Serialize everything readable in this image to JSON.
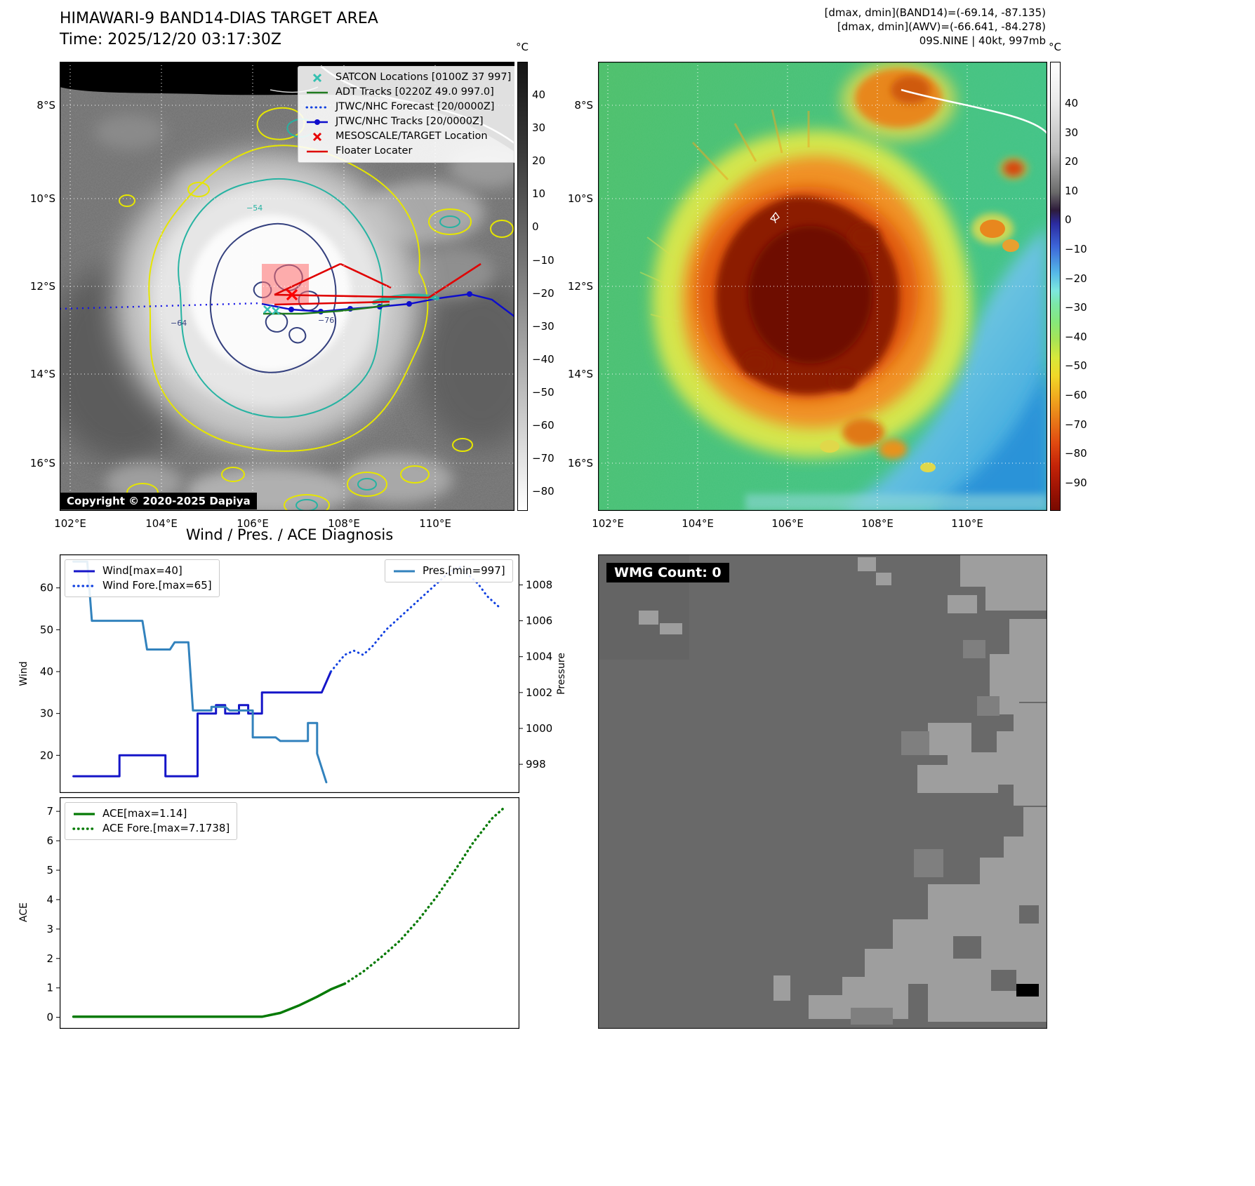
{
  "band14": {
    "title": "HIMAWARI-9 BAND14-DIAS TARGET AREA",
    "subtitle": "Time: 2025/12/20 03:17:30Z",
    "copyright": "Copyright © 2020-2025 Dapiya",
    "legend": [
      {
        "label": "SATCON Locations [0100Z 37 997]",
        "marker": "x-cross",
        "color": "#35c0b0"
      },
      {
        "label": "ADT Tracks [0220Z 49.0 997.0]",
        "marker": "solid-line",
        "color": "#1f7a1f"
      },
      {
        "label": "JTWC/NHC Forecast [20/0000Z]",
        "marker": "dotted-line",
        "color": "#1040e0"
      },
      {
        "label": "JTWC/NHC Tracks [20/0000Z]",
        "marker": "line-with-dot",
        "color": "#0d0dcc"
      },
      {
        "label": "MESOSCALE/TARGET Location",
        "marker": "x-cross",
        "color": "#e60000"
      },
      {
        "label": "Floater Locater",
        "marker": "solid-line",
        "color": "#dd0000"
      }
    ],
    "x_ticks": [
      "102°E",
      "104°E",
      "106°E",
      "108°E",
      "110°E"
    ],
    "y_ticks": [
      "8°S",
      "10°S",
      "12°S",
      "14°S",
      "16°S"
    ],
    "colorbar_unit": "°C",
    "colorbar_ticks": [
      "40",
      "30",
      "20",
      "10",
      "0",
      "−10",
      "−20",
      "−30",
      "−40",
      "−50",
      "−60",
      "−70",
      "−80"
    ],
    "contour_labels": [
      "−54",
      "−64",
      "−76"
    ]
  },
  "awv": {
    "header_line1": "[dmax, dmin](BAND14)=(-69.14, -87.135)",
    "header_line2": "[dmax, dmin](AWV)=(-66.641, -84.278)",
    "header_line3": "09S.NINE | 40kt, 997mb",
    "x_ticks": [
      "102°E",
      "104°E",
      "106°E",
      "108°E",
      "110°E"
    ],
    "y_ticks": [
      "8°S",
      "10°S",
      "12°S",
      "14°S",
      "16°S"
    ],
    "colorbar_unit": "°C",
    "colorbar_ticks": [
      "40",
      "30",
      "20",
      "10",
      "0",
      "−10",
      "−20",
      "−30",
      "−40",
      "−50",
      "−60",
      "−70",
      "−80",
      "−90"
    ]
  },
  "diagnosis": {
    "title": "Wind / Pres. / ACE Diagnosis",
    "wind_axis_label": "Wind",
    "pressure_axis_label": "Pressure",
    "ace_axis_label": "ACE",
    "legend_wind": "Wind[max=40]",
    "legend_wind_forecast": "Wind Fore.[max=65]",
    "legend_pressure": "Pres.[min=997]",
    "legend_ace": "ACE[max=1.14]",
    "legend_ace_forecast": "ACE Fore.[max=7.1738]"
  },
  "wmg": {
    "label": "WMG Count: 0"
  },
  "chart_data": [
    {
      "type": "line",
      "title": "Wind / Pres. / ACE Diagnosis — wind and pressure",
      "x_range": [
        0,
        100
      ],
      "grid": false,
      "legend_position": "upper left / upper right",
      "axes": {
        "wind": {
          "side": "left",
          "label": "Wind",
          "range": [
            11,
            68
          ],
          "ticks": [
            "20",
            "30",
            "40",
            "50",
            "60"
          ]
        },
        "pressure": {
          "side": "right",
          "label": "Pressure",
          "range": [
            996.4,
            1009.7
          ],
          "ticks": [
            "998",
            "1000",
            "1002",
            "1004",
            "1006",
            "1008"
          ]
        }
      },
      "series": [
        {
          "name": "Wind[max=40]",
          "axis": "wind",
          "color": "#1515c8",
          "dash": "solid",
          "width": 3,
          "points": [
            [
              3,
              15
            ],
            [
              13,
              15
            ],
            [
              13,
              20
            ],
            [
              23,
              20
            ],
            [
              23,
              15
            ],
            [
              30,
              15
            ],
            [
              30,
              30
            ],
            [
              34,
              30
            ],
            [
              34,
              32
            ],
            [
              36,
              32
            ],
            [
              36,
              30
            ],
            [
              39,
              30
            ],
            [
              39,
              32
            ],
            [
              41,
              32
            ],
            [
              41,
              30
            ],
            [
              44,
              30
            ],
            [
              44,
              35
            ],
            [
              57,
              35
            ],
            [
              59,
              40
            ]
          ]
        },
        {
          "name": "Wind Fore.[max=65]",
          "axis": "wind",
          "color": "#1040e0",
          "dash": "dotted",
          "width": 3,
          "points": [
            [
              59,
              40
            ],
            [
              62,
              44
            ],
            [
              64,
              45
            ],
            [
              66,
              44
            ],
            [
              68,
              46
            ],
            [
              71,
              50
            ],
            [
              74,
              53
            ],
            [
              77,
              56
            ],
            [
              80,
              59
            ],
            [
              83,
              62
            ],
            [
              85,
              64
            ],
            [
              87,
              65
            ],
            [
              89,
              63
            ],
            [
              91,
              61
            ],
            [
              93,
              58
            ],
            [
              96,
              55
            ]
          ]
        },
        {
          "name": "Pres.[min=997]",
          "axis": "pressure",
          "color": "#3282bd",
          "dash": "solid",
          "width": 3,
          "points": [
            [
              3,
              1009.3
            ],
            [
              6,
              1009.3
            ],
            [
              7,
              1006
            ],
            [
              18,
              1006
            ],
            [
              19,
              1004.4
            ],
            [
              24,
              1004.4
            ],
            [
              25,
              1004.8
            ],
            [
              28,
              1004.8
            ],
            [
              29,
              1001
            ],
            [
              33,
              1001
            ],
            [
              33,
              1001.2
            ],
            [
              36,
              1001.2
            ],
            [
              37,
              1001
            ],
            [
              42,
              1001
            ],
            [
              42,
              999.5
            ],
            [
              47,
              999.5
            ],
            [
              48,
              999.3
            ],
            [
              54,
              999.3
            ],
            [
              54,
              1000.3
            ],
            [
              56,
              1000.3
            ],
            [
              56,
              998.6
            ],
            [
              58,
              997
            ]
          ]
        }
      ]
    },
    {
      "type": "line",
      "title": "ACE",
      "x_range": [
        0,
        100
      ],
      "grid": false,
      "legend_position": "upper left",
      "axes": {
        "ace": {
          "side": "left",
          "label": "ACE",
          "range": [
            -0.39,
            7.48
          ],
          "ticks": [
            "0",
            "1",
            "2",
            "3",
            "4",
            "5",
            "6",
            "7"
          ]
        }
      },
      "series": [
        {
          "name": "ACE[max=1.14]",
          "axis": "ace",
          "color": "#047a04",
          "dash": "solid",
          "width": 3.5,
          "points": [
            [
              3,
              0.02
            ],
            [
              44,
              0.02
            ],
            [
              48,
              0.15
            ],
            [
              52,
              0.4
            ],
            [
              56,
              0.7
            ],
            [
              59,
              0.95
            ],
            [
              62,
              1.14
            ]
          ]
        },
        {
          "name": "ACE Fore.[max=7.1738]",
          "axis": "ace",
          "color": "#047a04",
          "dash": "dotted",
          "width": 3.5,
          "points": [
            [
              62,
              1.14
            ],
            [
              66,
              1.55
            ],
            [
              70,
              2.05
            ],
            [
              74,
              2.6
            ],
            [
              78,
              3.3
            ],
            [
              82,
              4.1
            ],
            [
              86,
              5.0
            ],
            [
              90,
              5.95
            ],
            [
              94,
              6.75
            ],
            [
              97,
              7.17
            ]
          ]
        }
      ]
    }
  ]
}
